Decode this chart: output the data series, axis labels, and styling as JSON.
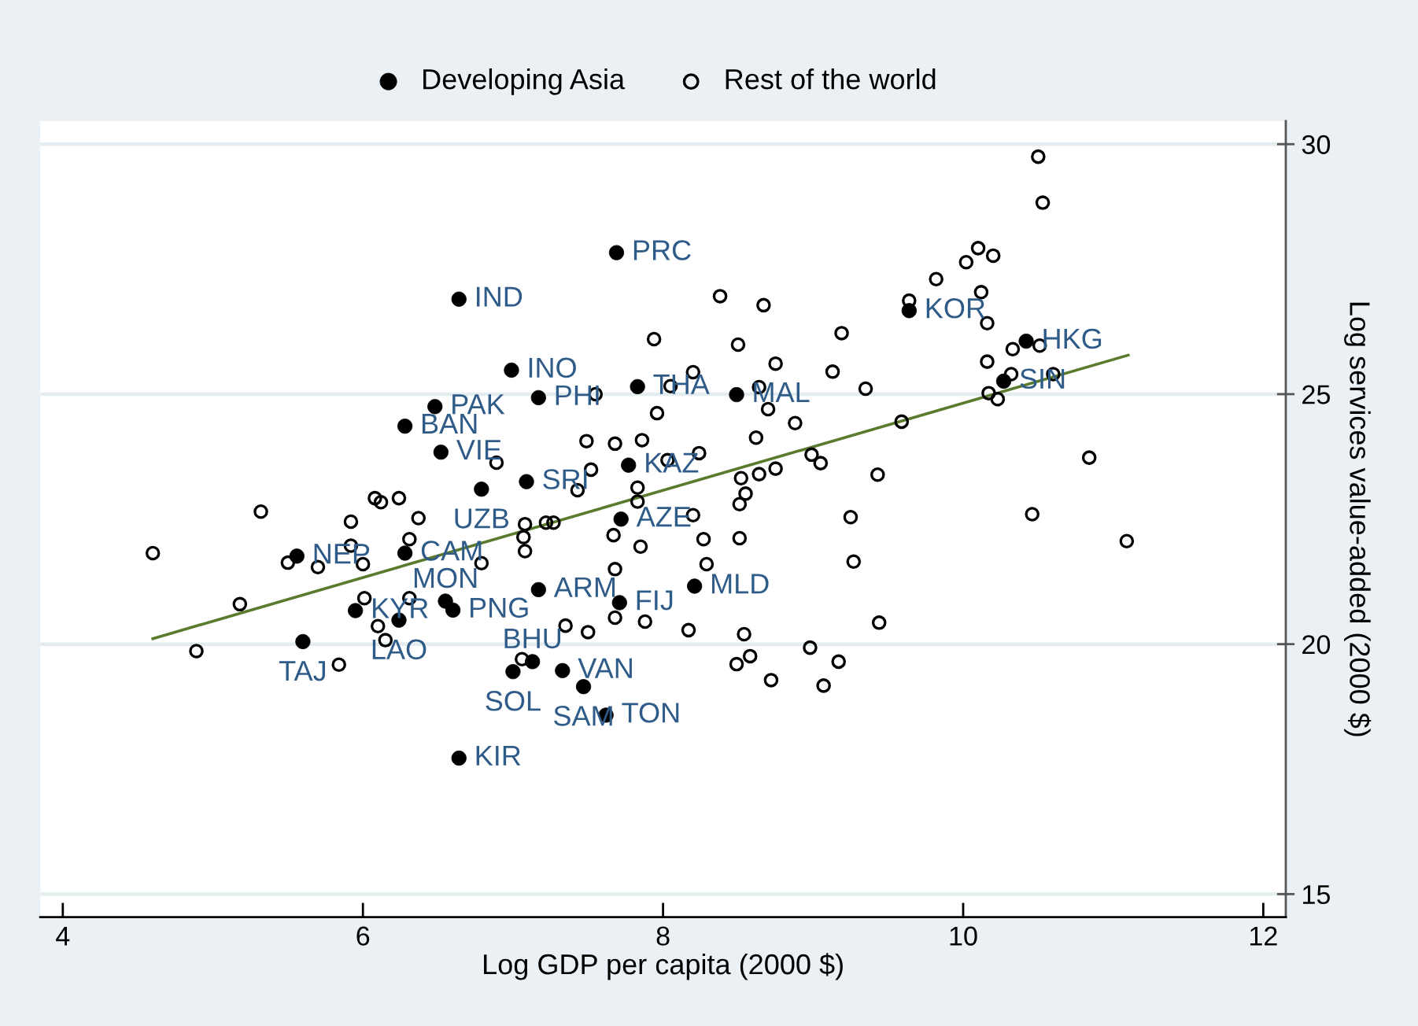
{
  "chart_data": {
    "type": "scatter",
    "xlabel": "Log GDP per capita (2000 $)",
    "ylabel": "Log services value-added (2000 $)",
    "xlim": [
      3.85,
      12.15
    ],
    "xticks": [
      4,
      6,
      8,
      10,
      12
    ],
    "ylim": [
      14.54,
      30.46
    ],
    "yticks": [
      15,
      20,
      25,
      30
    ],
    "grid": "y",
    "legend": "top",
    "marker": "circle",
    "series": [
      {
        "name": "Developing Asia",
        "color": "#000000",
        "x": [
          7.69,
          6.64,
          6.99,
          7.17,
          6.48,
          6.28,
          6.52,
          7.09,
          6.79,
          7.83,
          7.77,
          8.49,
          9.64,
          10.42,
          10.27,
          7.72,
          5.56,
          6.28,
          6.55,
          6.6,
          7.17,
          7.71,
          5.95,
          6.24,
          5.6,
          7.13,
          7.0,
          7.33,
          7.47,
          7.62,
          6.64,
          8.21
        ],
        "values": [
          27.83,
          26.9,
          25.48,
          24.93,
          24.75,
          24.36,
          23.84,
          23.25,
          23.1,
          25.15,
          23.58,
          24.99,
          26.67,
          26.06,
          25.26,
          22.5,
          21.76,
          21.82,
          20.86,
          20.68,
          21.09,
          20.83,
          20.67,
          20.48,
          20.05,
          19.65,
          19.45,
          19.47,
          19.15,
          18.58,
          17.72,
          21.16
        ],
        "value_labels": [
          "PRC",
          "IND",
          "INO",
          "PHI",
          "PAK",
          "BAN",
          "VIE",
          "SRI",
          "UZB",
          "THA",
          "KAZ",
          "MAL",
          "KOR",
          "HKG",
          "SIN",
          "AZE",
          "NEP",
          "CAM",
          "MON",
          "PNG",
          "ARM",
          "FIJ",
          "KYR",
          "LAO",
          "TAJ",
          "BHU",
          "SOL",
          "VAN",
          "SAM",
          "TON",
          "KIR",
          "MLD"
        ]
      },
      {
        "name": "Rest of the world",
        "color": "#000000",
        "marker": "open circle",
        "x": [
          4.6,
          4.89,
          5.18,
          5.32,
          5.5,
          5.7,
          5.84,
          5.92,
          5.92,
          6.0,
          6.01,
          6.08,
          6.12,
          6.1,
          6.15,
          6.24,
          6.31,
          6.31,
          6.37,
          6.79,
          6.89,
          7.06,
          7.07,
          7.08,
          7.08,
          7.22,
          7.27,
          7.35,
          7.43,
          7.49,
          7.5,
          7.52,
          7.55,
          7.67,
          7.68,
          7.68,
          7.68,
          7.83,
          7.83,
          7.85,
          7.86,
          7.88,
          7.94,
          7.96,
          8.03,
          8.05,
          8.17,
          8.2,
          8.2,
          8.24,
          8.27,
          8.29,
          8.38,
          8.5,
          8.49,
          8.51,
          8.51,
          8.52,
          8.55,
          8.54,
          8.58,
          8.62,
          8.64,
          8.64,
          8.67,
          8.7,
          8.72,
          8.75,
          8.75,
          8.88,
          8.98,
          8.99,
          9.05,
          9.07,
          9.13,
          9.17,
          9.19,
          9.25,
          9.27,
          9.35,
          9.43,
          9.44,
          9.59,
          9.64,
          9.82,
          10.02,
          10.1,
          10.2,
          10.12,
          10.16,
          10.16,
          10.17,
          10.23,
          10.33,
          10.32,
          10.46,
          10.5,
          10.51,
          10.53,
          10.6,
          10.84,
          11.09
        ],
        "values": [
          21.82,
          19.86,
          20.8,
          22.65,
          21.63,
          21.54,
          19.59,
          22.45,
          21.97,
          21.6,
          20.92,
          22.92,
          22.84,
          20.36,
          20.08,
          22.92,
          22.1,
          20.92,
          22.52,
          21.62,
          23.63,
          19.7,
          22.14,
          22.4,
          21.86,
          22.43,
          22.43,
          20.37,
          23.08,
          24.06,
          20.24,
          23.49,
          25.0,
          22.18,
          24.01,
          21.5,
          20.53,
          23.13,
          22.85,
          21.95,
          24.08,
          20.45,
          26.1,
          24.62,
          23.68,
          25.16,
          20.28,
          25.44,
          22.58,
          23.82,
          22.1,
          21.6,
          26.96,
          25.99,
          19.6,
          22.8,
          22.12,
          23.32,
          23.01,
          20.2,
          19.76,
          24.13,
          25.14,
          23.4,
          26.78,
          24.7,
          19.28,
          25.61,
          23.51,
          24.42,
          19.93,
          23.79,
          23.62,
          19.17,
          25.45,
          19.65,
          26.22,
          22.54,
          21.65,
          25.11,
          23.39,
          20.43,
          24.45,
          26.87,
          27.3,
          27.64,
          27.92,
          27.77,
          27.04,
          26.42,
          25.65,
          25.02,
          24.9,
          25.9,
          25.4,
          22.6,
          29.75,
          25.97,
          28.83,
          25.4,
          23.73,
          22.06
        ]
      },
      {
        "type": "line",
        "color": "#5a7a2e",
        "marker": "none",
        "line_style": "solid",
        "x": [
          4.6,
          11.1
        ],
        "values": [
          20.11,
          25.78
        ]
      }
    ]
  }
}
